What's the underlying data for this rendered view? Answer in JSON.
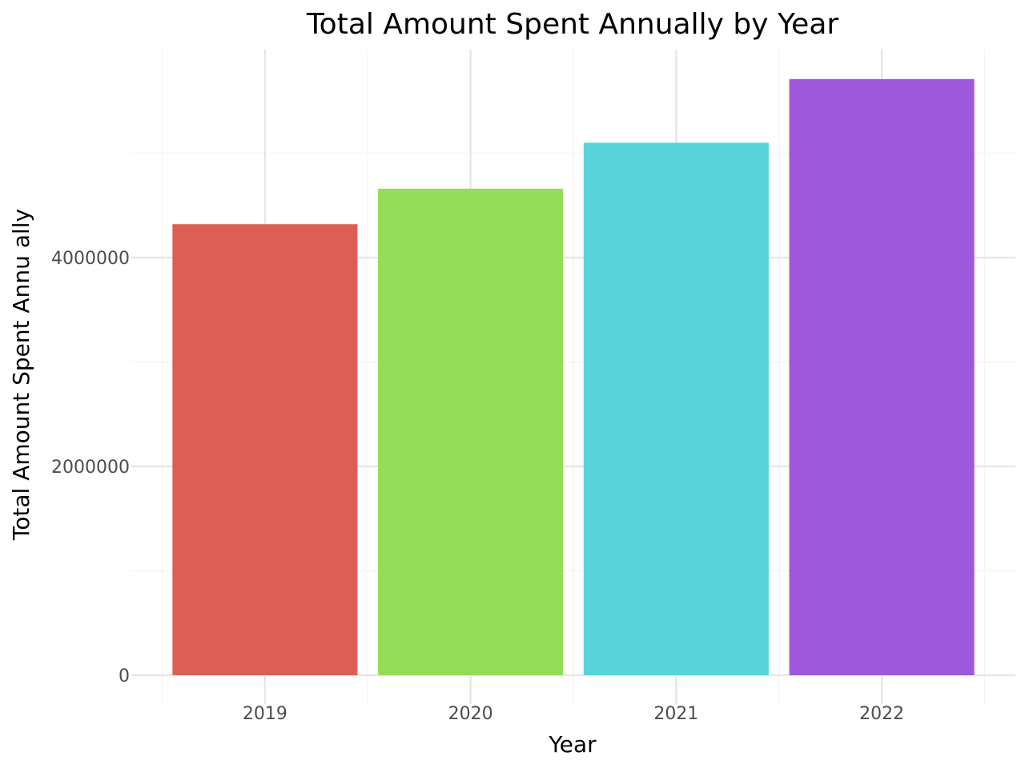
{
  "chart_data": {
    "type": "bar",
    "title": "Total Amount Spent Annually by Year",
    "xlabel": "Year",
    "ylabel": "Total Amount Spent Annu ally",
    "categories": [
      "2019",
      "2020",
      "2021",
      "2022"
    ],
    "values": [
      4320000,
      4660000,
      5100000,
      5710000
    ],
    "colors": [
      "#dc5f56",
      "#95dc58",
      "#57d3d9",
      "#9d58db"
    ],
    "ylim": [
      -200000,
      6000000
    ],
    "yticks": [
      0,
      2000000,
      4000000
    ],
    "ytick_labels": [
      "0",
      "2000000",
      "4000000"
    ],
    "grid": true,
    "legend": "none"
  }
}
